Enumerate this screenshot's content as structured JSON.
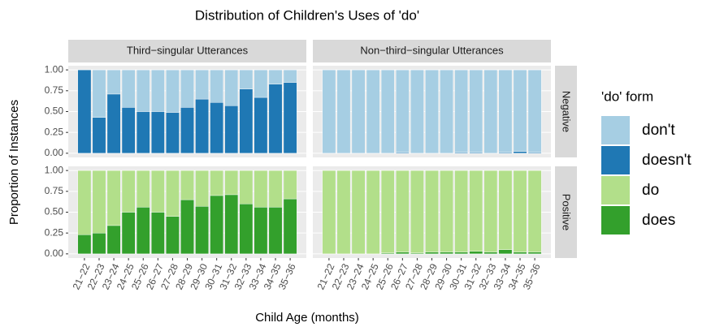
{
  "chart_data": {
    "type": "bar",
    "title": "Distribution of Children's Uses of 'do'",
    "x_label": "Child Age (months)",
    "y_label": "Proportion of Instances",
    "legend_title": "'do' form",
    "columns": [
      "Third−singular Utterances",
      "Non−third−singular Utterances"
    ],
    "rows": [
      "Negative",
      "Positive"
    ],
    "categories": [
      "21−22",
      "22−23",
      "23−24",
      "24−25",
      "25−26",
      "26−27",
      "27−28",
      "28−29",
      "29−30",
      "30−31",
      "31−32",
      "32−33",
      "33−34",
      "34−35",
      "35−36"
    ],
    "ylim": [
      -0.05,
      1.05
    ],
    "yticks": [
      {
        "value": 0,
        "label": "0.00"
      },
      {
        "value": 0.25,
        "label": "0.25"
      },
      {
        "value": 0.5,
        "label": "0.50"
      },
      {
        "value": 0.75,
        "label": "0.75"
      },
      {
        "value": 1,
        "label": "1.00"
      }
    ],
    "grid": true,
    "panels": [
      [
        {
          "series": [
            {
              "name": "doesn't",
              "color": "#1f78b4",
              "values": [
                1.0,
                0.43,
                0.71,
                0.55,
                0.5,
                0.5,
                0.49,
                0.55,
                0.65,
                0.61,
                0.57,
                0.77,
                0.67,
                0.83,
                0.85
              ]
            },
            {
              "name": "don't",
              "color": "#a6cee3",
              "values": [
                0.0,
                0.57,
                0.29,
                0.45,
                0.5,
                0.5,
                0.51,
                0.45,
                0.35,
                0.39,
                0.43,
                0.23,
                0.33,
                0.17,
                0.15
              ]
            }
          ]
        },
        {
          "series": [
            {
              "name": "doesn't",
              "color": "#1f78b4",
              "values": [
                0,
                0,
                0,
                0,
                0,
                0.01,
                0,
                0,
                0,
                0.01,
                0.01,
                0,
                0.01,
                0.02,
                0.01
              ]
            },
            {
              "name": "don't",
              "color": "#a6cee3",
              "values": [
                1,
                1,
                1,
                1,
                1,
                0.99,
                1,
                1,
                1,
                0.99,
                0.99,
                1,
                0.99,
                0.98,
                0.99
              ]
            }
          ]
        }
      ],
      [
        {
          "series": [
            {
              "name": "does",
              "color": "#33a02c",
              "values": [
                0.23,
                0.25,
                0.34,
                0.5,
                0.56,
                0.5,
                0.45,
                0.65,
                0.57,
                0.7,
                0.71,
                0.6,
                0.56,
                0.56,
                0.66
              ]
            },
            {
              "name": "do",
              "color": "#b2df8a",
              "values": [
                0.77,
                0.75,
                0.66,
                0.5,
                0.44,
                0.5,
                0.55,
                0.35,
                0.43,
                0.3,
                0.29,
                0.4,
                0.44,
                0.44,
                0.34
              ]
            }
          ]
        },
        {
          "series": [
            {
              "name": "does",
              "color": "#33a02c",
              "values": [
                0,
                0,
                0,
                0,
                0.01,
                0.02,
                0.01,
                0.02,
                0.02,
                0.02,
                0.03,
                0.02,
                0.05,
                0.02,
                0.02
              ]
            },
            {
              "name": "do",
              "color": "#b2df8a",
              "values": [
                1,
                1,
                1,
                1,
                0.99,
                0.98,
                0.99,
                0.98,
                0.98,
                0.98,
                0.97,
                0.98,
                0.95,
                0.98,
                0.98
              ]
            }
          ]
        }
      ]
    ]
  }
}
